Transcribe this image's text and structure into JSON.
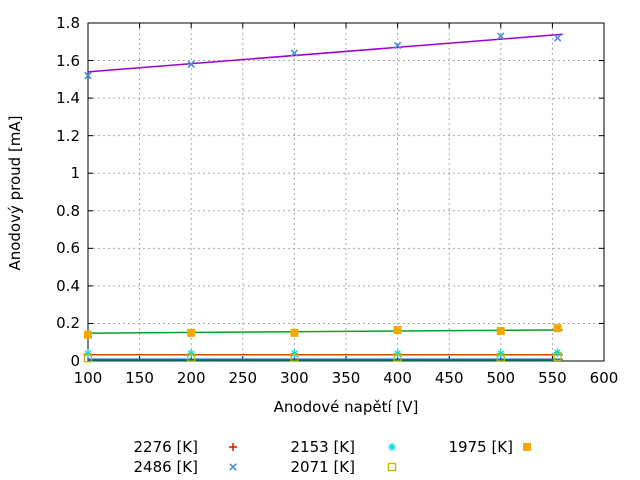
{
  "chart_data": {
    "type": "scatter",
    "title": "",
    "xlabel": "Anodové napětí [V]",
    "ylabel": "Anodový proud [mA]",
    "xlim": [
      100,
      600
    ],
    "ylim": [
      0,
      1.8
    ],
    "x_ticks": [
      100,
      150,
      200,
      250,
      300,
      350,
      400,
      450,
      500,
      550,
      600
    ],
    "y_ticks": [
      0,
      0.2,
      0.4,
      0.6,
      0.8,
      1,
      1.2,
      1.4,
      1.6,
      1.8
    ],
    "grid": "dashed",
    "grid_color": "#a8a8a8",
    "axis_color": "#000000",
    "x": [
      100,
      200,
      300,
      400,
      500,
      555
    ],
    "fit_line_x_range": [
      100,
      560
    ],
    "series": [
      {
        "label": "2276 [K]",
        "marker": "plus",
        "marker_color": "#e51a10",
        "line_color": "#006a55",
        "points_visible": false,
        "points": null,
        "fit_line": [
          0.002,
          0.002
        ]
      },
      {
        "label": "2486 [K]",
        "marker": "cross",
        "marker_color": "#4a90d9",
        "line_color": "#a000d0",
        "points_visible": true,
        "points": [
          1.52,
          1.58,
          1.64,
          1.68,
          1.73,
          1.72
        ],
        "fit_line": [
          1.54,
          1.74
        ]
      },
      {
        "label": "2153 [K]",
        "marker": "asterisk",
        "marker_color": "#00dede",
        "line_color": "#c04f00",
        "points_visible": true,
        "points": [
          0.04,
          0.04,
          0.04,
          0.04,
          0.04,
          0.045
        ],
        "fit_line": [
          0.033,
          0.033
        ]
      },
      {
        "label": "2071 [K]",
        "marker": "open-square",
        "marker_color": "#b8b800",
        "line_color": "#1f5fbf",
        "points_visible": true,
        "points": [
          0.015,
          0.018,
          0.018,
          0.018,
          0.018,
          0.022
        ],
        "fit_line": [
          0.009,
          0.009
        ]
      },
      {
        "label": "1975 [K]",
        "marker": "filled-square",
        "marker_color": "#f2a900",
        "line_color": "#00a428",
        "points_visible": true,
        "points": [
          0.14,
          0.15,
          0.15,
          0.165,
          0.16,
          0.175
        ],
        "fit_line": [
          0.148,
          0.166
        ]
      }
    ],
    "legend_rows": [
      [
        0,
        2,
        4
      ],
      [
        1,
        3
      ]
    ],
    "legend_position": "below-chart"
  }
}
